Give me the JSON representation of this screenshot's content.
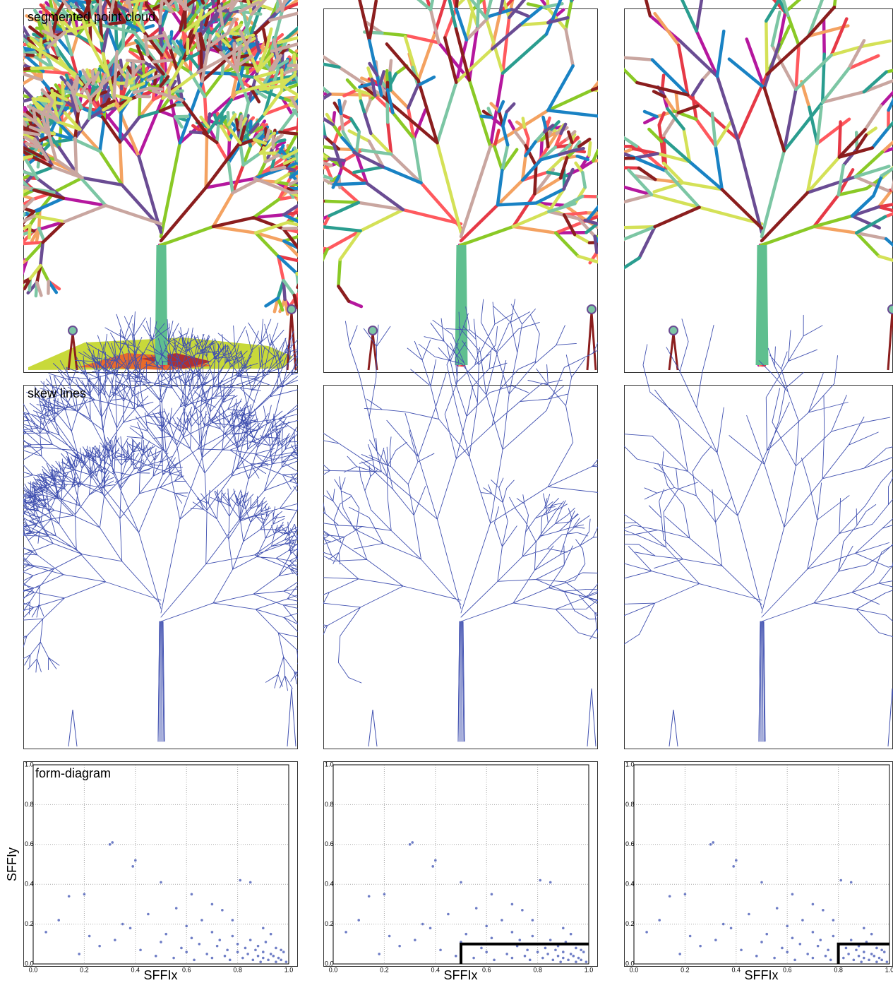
{
  "panels": {
    "row_labels": [
      "segmented point cloud",
      "skew lines"
    ]
  },
  "chart_data": [
    {
      "type": "scatter",
      "title": "form-diagram",
      "x_label": "SFFIx",
      "y_label": "SFFIy",
      "color": "#4a5cb8",
      "x": [
        0.05,
        0.1,
        0.14,
        0.18,
        0.2,
        0.22,
        0.26,
        0.3,
        0.31,
        0.32,
        0.35,
        0.38,
        0.39,
        0.4,
        0.42,
        0.45,
        0.48,
        0.5,
        0.5,
        0.52,
        0.55,
        0.56,
        0.58,
        0.6,
        0.6,
        0.62,
        0.63,
        0.65,
        0.66,
        0.68,
        0.7,
        0.7,
        0.72,
        0.73,
        0.74,
        0.75,
        0.76,
        0.77,
        0.78,
        0.8,
        0.8,
        0.81,
        0.82,
        0.83,
        0.84,
        0.85,
        0.85,
        0.86,
        0.87,
        0.88,
        0.88,
        0.89,
        0.9,
        0.9,
        0.91,
        0.92,
        0.93,
        0.94,
        0.95,
        0.95,
        0.96,
        0.97,
        0.98,
        0.99,
        0.62,
        0.7,
        0.78,
        0.9,
        0.93,
        0.97
      ],
      "y": [
        0.16,
        0.22,
        0.34,
        0.05,
        0.35,
        0.14,
        0.09,
        0.6,
        0.61,
        0.12,
        0.2,
        0.18,
        0.49,
        0.52,
        0.07,
        0.25,
        0.04,
        0.41,
        0.11,
        0.15,
        0.03,
        0.28,
        0.08,
        0.06,
        0.19,
        0.13,
        0.02,
        0.1,
        0.22,
        0.05,
        0.03,
        0.16,
        0.09,
        0.12,
        0.27,
        0.04,
        0.07,
        0.02,
        0.14,
        0.06,
        0.1,
        0.42,
        0.03,
        0.08,
        0.05,
        0.41,
        0.12,
        0.02,
        0.07,
        0.04,
        0.09,
        0.01,
        0.03,
        0.06,
        0.11,
        0.02,
        0.05,
        0.04,
        0.01,
        0.08,
        0.03,
        0.02,
        0.06,
        0.01,
        0.35,
        0.3,
        0.22,
        0.18,
        0.15,
        0.07
      ],
      "xlim": [
        0,
        1
      ],
      "ylim": [
        0,
        1
      ],
      "xticks": [
        {
          "value": 0,
          "label": "0.0"
        },
        0.2,
        0.4,
        0.6,
        0.8,
        {
          "value": 1,
          "label": "1.0"
        }
      ],
      "yticks": [
        {
          "value": 0,
          "label": "0.0"
        },
        0.2,
        0.4,
        0.6,
        0.8,
        {
          "value": 1,
          "label": "1.0"
        }
      ],
      "grid": true
    },
    {
      "type": "scatter",
      "x_label": "SFFIx",
      "color": "#4a5cb8",
      "x": [
        0.05,
        0.1,
        0.14,
        0.18,
        0.2,
        0.22,
        0.26,
        0.3,
        0.31,
        0.32,
        0.35,
        0.38,
        0.39,
        0.4,
        0.42,
        0.45,
        0.48,
        0.5,
        0.5,
        0.52,
        0.55,
        0.56,
        0.58,
        0.6,
        0.6,
        0.62,
        0.63,
        0.65,
        0.66,
        0.68,
        0.7,
        0.7,
        0.72,
        0.73,
        0.74,
        0.75,
        0.76,
        0.77,
        0.78,
        0.8,
        0.8,
        0.81,
        0.82,
        0.83,
        0.84,
        0.85,
        0.85,
        0.86,
        0.87,
        0.88,
        0.88,
        0.89,
        0.9,
        0.9,
        0.91,
        0.92,
        0.93,
        0.94,
        0.95,
        0.95,
        0.96,
        0.97,
        0.98,
        0.99,
        0.62,
        0.7,
        0.78,
        0.9,
        0.93,
        0.97
      ],
      "y": [
        0.16,
        0.22,
        0.34,
        0.05,
        0.35,
        0.14,
        0.09,
        0.6,
        0.61,
        0.12,
        0.2,
        0.18,
        0.49,
        0.52,
        0.07,
        0.25,
        0.04,
        0.41,
        0.11,
        0.15,
        0.03,
        0.28,
        0.08,
        0.06,
        0.19,
        0.13,
        0.02,
        0.1,
        0.22,
        0.05,
        0.03,
        0.16,
        0.09,
        0.12,
        0.27,
        0.04,
        0.07,
        0.02,
        0.14,
        0.06,
        0.1,
        0.42,
        0.03,
        0.08,
        0.05,
        0.41,
        0.12,
        0.02,
        0.07,
        0.04,
        0.09,
        0.01,
        0.03,
        0.06,
        0.11,
        0.02,
        0.05,
        0.04,
        0.01,
        0.08,
        0.03,
        0.02,
        0.06,
        0.01,
        0.35,
        0.3,
        0.22,
        0.18,
        0.15,
        0.07
      ],
      "xlim": [
        0,
        1
      ],
      "ylim": [
        0,
        1
      ],
      "xticks": [
        {
          "value": 0,
          "label": "0.0"
        },
        0.2,
        0.4,
        0.6,
        0.8,
        {
          "value": 1,
          "label": "1.0"
        }
      ],
      "yticks": [
        {
          "value": 0,
          "label": "0.0"
        },
        0.2,
        0.4,
        0.6,
        0.8,
        {
          "value": 1,
          "label": "1.0"
        }
      ],
      "grid": true,
      "threshold": {
        "x": 0.5,
        "y": 0.1
      }
    },
    {
      "type": "scatter",
      "x_label": "SFFIx",
      "color": "#4a5cb8",
      "x": [
        0.05,
        0.1,
        0.14,
        0.18,
        0.2,
        0.22,
        0.26,
        0.3,
        0.31,
        0.32,
        0.35,
        0.38,
        0.39,
        0.4,
        0.42,
        0.45,
        0.48,
        0.5,
        0.5,
        0.52,
        0.55,
        0.56,
        0.58,
        0.6,
        0.6,
        0.62,
        0.63,
        0.65,
        0.66,
        0.68,
        0.7,
        0.7,
        0.72,
        0.73,
        0.74,
        0.75,
        0.76,
        0.77,
        0.78,
        0.8,
        0.8,
        0.81,
        0.82,
        0.83,
        0.84,
        0.85,
        0.85,
        0.86,
        0.87,
        0.88,
        0.88,
        0.89,
        0.9,
        0.9,
        0.91,
        0.92,
        0.93,
        0.94,
        0.95,
        0.95,
        0.96,
        0.97,
        0.98,
        0.99,
        0.62,
        0.7,
        0.78,
        0.9,
        0.93,
        0.97
      ],
      "y": [
        0.16,
        0.22,
        0.34,
        0.05,
        0.35,
        0.14,
        0.09,
        0.6,
        0.61,
        0.12,
        0.2,
        0.18,
        0.49,
        0.52,
        0.07,
        0.25,
        0.04,
        0.41,
        0.11,
        0.15,
        0.03,
        0.28,
        0.08,
        0.06,
        0.19,
        0.13,
        0.02,
        0.1,
        0.22,
        0.05,
        0.03,
        0.16,
        0.09,
        0.12,
        0.27,
        0.04,
        0.07,
        0.02,
        0.14,
        0.06,
        0.1,
        0.42,
        0.03,
        0.08,
        0.05,
        0.41,
        0.12,
        0.02,
        0.07,
        0.04,
        0.09,
        0.01,
        0.03,
        0.06,
        0.11,
        0.02,
        0.05,
        0.04,
        0.01,
        0.08,
        0.03,
        0.02,
        0.06,
        0.01,
        0.35,
        0.3,
        0.22,
        0.18,
        0.15,
        0.07
      ],
      "xlim": [
        0,
        1
      ],
      "ylim": [
        0,
        1
      ],
      "xticks": [
        {
          "value": 0,
          "label": "0.0"
        },
        0.2,
        0.4,
        0.6,
        0.8,
        {
          "value": 1,
          "label": "1.0"
        }
      ],
      "yticks": [
        {
          "value": 0,
          "label": "0.0"
        },
        0.2,
        0.4,
        0.6,
        0.8,
        {
          "value": 1,
          "label": "1.0"
        }
      ],
      "grid": true,
      "threshold": {
        "x": 0.8,
        "y": 0.1
      }
    }
  ]
}
